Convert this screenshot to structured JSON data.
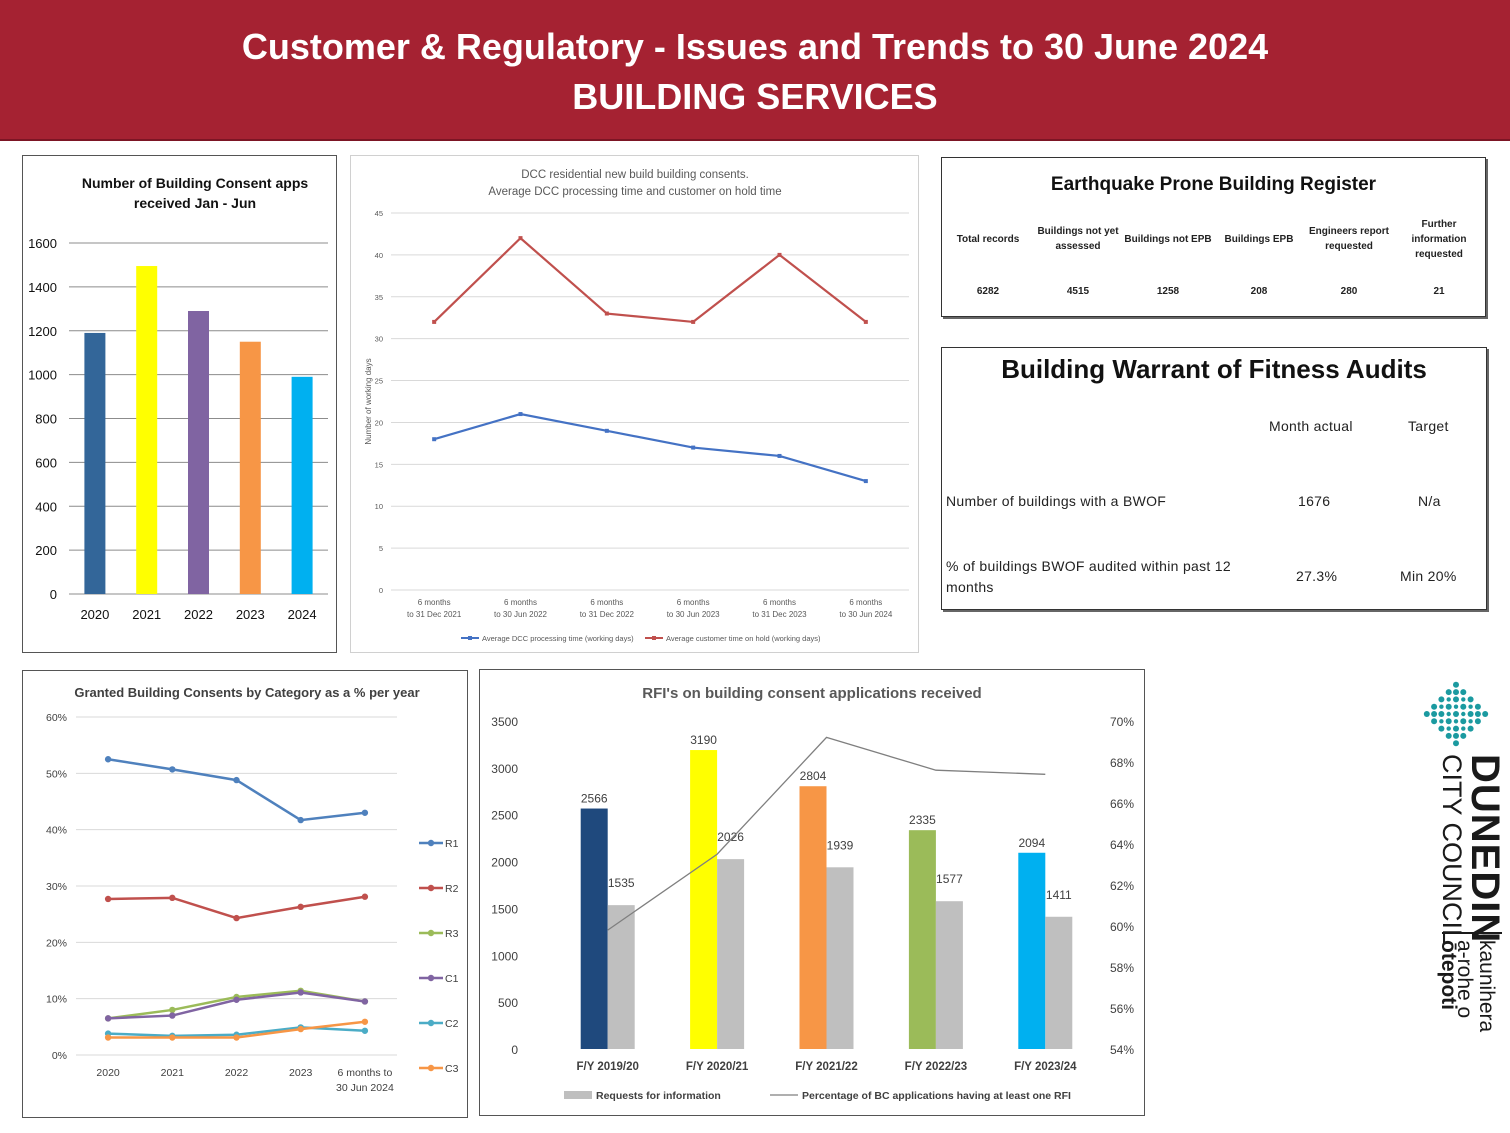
{
  "header": {
    "line1": "Customer & Regulatory - Issues and Trends to 30 June 2024",
    "line2": "BUILDING SERVICES"
  },
  "epb": {
    "title": "Earthquake Prone Building Register",
    "columns": [
      "Total records",
      "Buildings not yet assessed",
      "Buildings not EPB",
      "Buildings EPB",
      "Engineers report requested",
      "Further information requested"
    ],
    "values": [
      "6282",
      "4515",
      "1258",
      "208",
      "280",
      "21"
    ]
  },
  "bwof": {
    "title": "Building Warrant of Fitness Audits",
    "col_actual": "Month actual",
    "col_target": "Target",
    "row1_label": "Number of buildings with a BWOF",
    "row1_actual": "1676",
    "row1_target": "N/a",
    "row2_label": "% of buildings BWOF audited within past 12 months",
    "row2_actual": "27.3%",
    "row2_target": "Min 20%"
  },
  "logo": {
    "name": "DUNEDIN",
    "sub": "CITY COUNCIL",
    "maori1": "kaunihera",
    "maori2": "a-rohe o",
    "maori3": "ōtepoti",
    "colors": {
      "teal": "#1b9aa0",
      "text": "#1a1a1a"
    }
  },
  "chart_data": [
    {
      "id": "consents",
      "type": "bar",
      "title": "Number of Building Consent apps received Jan - Jun",
      "title_lines": [
        "Number of Building Consent apps",
        "received Jan - Jun"
      ],
      "categories": [
        "2020",
        "2021",
        "2022",
        "2023",
        "2024"
      ],
      "values": [
        1190,
        1495,
        1290,
        1150,
        990
      ],
      "colors": [
        "#336699",
        "#ffff00",
        "#8064a2",
        "#f79646",
        "#00b0f0"
      ],
      "ylim": [
        0,
        1600
      ],
      "yticks": [
        0,
        200,
        400,
        600,
        800,
        1000,
        1200,
        1400,
        1600
      ],
      "grid": true
    },
    {
      "id": "processing",
      "type": "line",
      "title": "DCC residential new build building consents. Average DCC processing time and customer on hold time",
      "title_lines": [
        "DCC residential new build building consents.",
        "Average DCC processing time and customer on hold time"
      ],
      "ylabel": "Number of working days",
      "categories": [
        [
          "6 months",
          "to 31 Dec 2021"
        ],
        [
          "6 months",
          "to 30 Jun 2022"
        ],
        [
          "6 months",
          "to 31 Dec 2022"
        ],
        [
          "6 months",
          "to 30 Jun 2023"
        ],
        [
          "6 months",
          "to 31 Dec 2023"
        ],
        [
          "6 months",
          "to 30 Jun 2024"
        ]
      ],
      "ylim": [
        0,
        45
      ],
      "yticks": [
        0,
        5,
        10,
        15,
        20,
        25,
        30,
        35,
        40,
        45
      ],
      "series": [
        {
          "name": "Average DCC processing time (working days)",
          "values": [
            18,
            21,
            19,
            17,
            16,
            13
          ],
          "color": "#4472c4"
        },
        {
          "name": "Average customer time on hold (working days)",
          "values": [
            32,
            42,
            33,
            32,
            40,
            32
          ],
          "color": "#c0504d"
        }
      ],
      "legend": "bottom",
      "grid": true
    },
    {
      "id": "category",
      "type": "line",
      "title": "Granted Building Consents by Category as a % per year",
      "categories": [
        [
          "2020"
        ],
        [
          "2021"
        ],
        [
          "2022"
        ],
        [
          "2023"
        ],
        [
          "6 months to",
          "30 Jun 2024"
        ]
      ],
      "ylim": [
        0,
        60
      ],
      "yticks": [
        0,
        10,
        20,
        30,
        40,
        50,
        60
      ],
      "ytick_labels": [
        "0%",
        "10%",
        "20%",
        "30%",
        "40%",
        "50%",
        "60%"
      ],
      "series": [
        {
          "name": "R1",
          "values": [
            52.5,
            50.7,
            48.8,
            41.7,
            43.0
          ],
          "color": "#4f81bd"
        },
        {
          "name": "R2",
          "values": [
            27.7,
            27.9,
            24.3,
            26.3,
            28.1
          ],
          "color": "#c0504d"
        },
        {
          "name": "R3",
          "values": [
            6.5,
            8.0,
            10.3,
            11.4,
            9.5
          ],
          "color": "#9bbb59"
        },
        {
          "name": "C1",
          "values": [
            6.5,
            7.0,
            9.8,
            11.1,
            9.5
          ],
          "color": "#8064a2"
        },
        {
          "name": "C2",
          "values": [
            3.8,
            3.4,
            3.6,
            4.9,
            4.3
          ],
          "color": "#4bacc6"
        },
        {
          "name": "C3",
          "values": [
            3.1,
            3.1,
            3.1,
            4.6,
            5.9
          ],
          "color": "#f79646"
        }
      ],
      "legend": "right",
      "grid": true
    },
    {
      "id": "rfi",
      "type": "bar",
      "title": "RFI's on building consent applications received",
      "categories": [
        "F/Y 2019/20",
        "F/Y 2020/21",
        "F/Y 2021/22",
        "F/Y 2022/23",
        "F/Y 2023/24"
      ],
      "applications": [
        2566,
        3190,
        2804,
        2335,
        2094
      ],
      "applications_colors": [
        "#1f497d",
        "#ffff00",
        "#f79646",
        "#9bbb59",
        "#00b0f0"
      ],
      "series": [
        {
          "name": "Requests for information",
          "values": [
            1535,
            2026,
            1939,
            1577,
            1411
          ],
          "color": "#bfbfbf"
        },
        {
          "name": "Percentage of BC applications having at least one RFI",
          "values": [
            59.8,
            63.5,
            69.2,
            67.6,
            67.4
          ],
          "color": "#7f7f7f",
          "axis": "right"
        }
      ],
      "ylim": [
        0,
        3500
      ],
      "yticks": [
        0,
        500,
        1000,
        1500,
        2000,
        2500,
        3000,
        3500
      ],
      "y2lim": [
        54,
        70
      ],
      "y2ticks": [
        54,
        56,
        58,
        60,
        62,
        64,
        66,
        68,
        70
      ],
      "y2tick_labels": [
        "54%",
        "56%",
        "58%",
        "60%",
        "62%",
        "64%",
        "66%",
        "68%",
        "70%"
      ],
      "legend": "bottom",
      "grid": false
    }
  ]
}
